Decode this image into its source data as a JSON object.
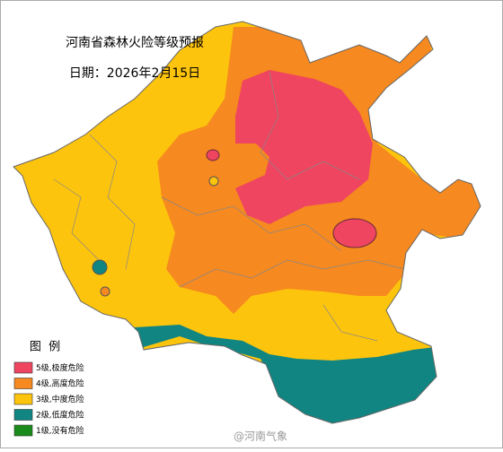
{
  "title": "河南省森林火险等级预报",
  "date": "日期：2026年2月15日",
  "legend": {
    "title": "图  例",
    "items": [
      {
        "label": "5级,极度危险",
        "color": "#ef4560"
      },
      {
        "label": "4级,高度危险",
        "color": "#f6891f"
      },
      {
        "label": "3级,中度危险",
        "color": "#fdc40d"
      },
      {
        "label": "2级,低度危险",
        "color": "#108582"
      },
      {
        "label": "1级,没有危险",
        "color": "#1a8a1a"
      }
    ]
  },
  "watermark": "@河南气象"
}
